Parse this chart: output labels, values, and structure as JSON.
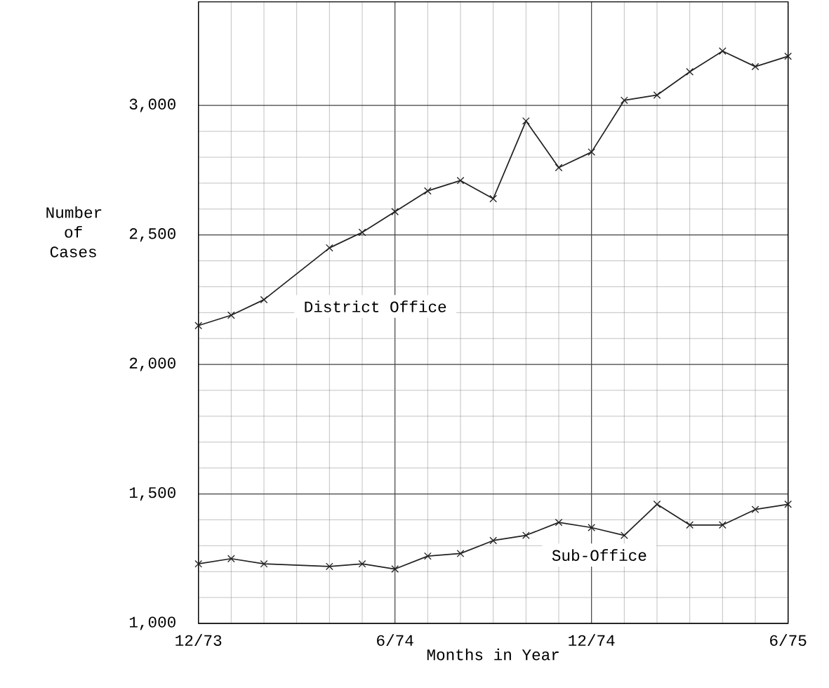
{
  "chart_data": {
    "type": "line",
    "xlabel": "Months in Year",
    "ylabel": "Number of Cases",
    "xlim": [
      "1973-12",
      "1975-06"
    ],
    "xticks": [
      {
        "value": "1973-12",
        "label": "12/73"
      },
      {
        "value": "1974-06",
        "label": "6/74"
      },
      {
        "value": "1974-12",
        "label": "12/74"
      },
      {
        "value": "1975-06",
        "label": "6/75"
      }
    ],
    "ylim": [
      1000,
      3400
    ],
    "yticks": [
      {
        "value": 1000,
        "label": "1,000"
      },
      {
        "value": 1500,
        "label": "1,500"
      },
      {
        "value": 2000,
        "label": "2,000"
      },
      {
        "value": 2500,
        "label": "2,500"
      },
      {
        "value": 3000,
        "label": "3,000"
      }
    ],
    "grid": true,
    "legend": false,
    "marker": "cross",
    "line_style": "solid",
    "series": [
      {
        "name": "District Office",
        "color": "#222222",
        "x": [
          "1973-12",
          "1974-01",
          "1974-02",
          "1974-04",
          "1974-05",
          "1974-06",
          "1974-07",
          "1974-08",
          "1974-09",
          "1974-10",
          "1974-11",
          "1974-12",
          "1975-01",
          "1975-02",
          "1975-03",
          "1975-04",
          "1975-05",
          "1975-06"
        ],
        "values": [
          2150,
          2190,
          2250,
          2450,
          2510,
          2590,
          2670,
          2710,
          2640,
          2940,
          2760,
          2820,
          3020,
          3040,
          3130,
          3210,
          3150,
          3190
        ]
      },
      {
        "name": "Sub-Office",
        "color": "#222222",
        "x": [
          "1973-12",
          "1974-01",
          "1974-02",
          "1974-04",
          "1974-05",
          "1974-06",
          "1974-07",
          "1974-08",
          "1974-09",
          "1974-10",
          "1974-11",
          "1974-12",
          "1975-01",
          "1975-02",
          "1975-03",
          "1975-04",
          "1975-05",
          "1975-06"
        ],
        "values": [
          1230,
          1250,
          1230,
          1220,
          1230,
          1210,
          1260,
          1270,
          1320,
          1340,
          1390,
          1370,
          1340,
          1460,
          1380,
          1380,
          1440,
          1460
        ]
      }
    ]
  }
}
